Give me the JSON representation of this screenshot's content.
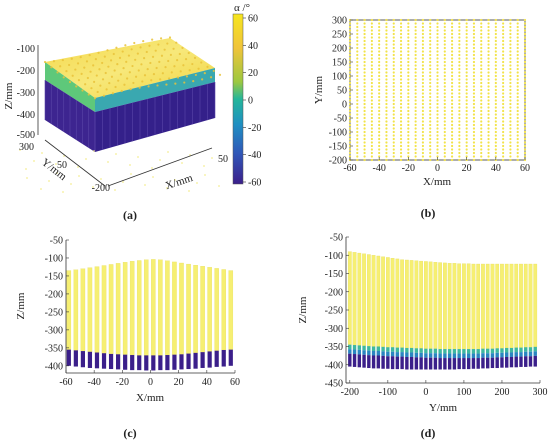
{
  "figure": {
    "panel_labels": [
      "(a)",
      "(b)",
      "(c)",
      "(d)"
    ]
  },
  "chart_data": [
    {
      "panel": "(a)",
      "type": "scatter3d",
      "zlabel": "Z/mm",
      "ylabel": "Y/mm",
      "xlabel": "X/mm",
      "z_ticks": [
        -100,
        -200,
        -300,
        -400,
        -500
      ],
      "y_ticks": [
        300,
        50,
        -200
      ],
      "x_ticks": [
        50
      ],
      "colorbar": {
        "label": "α /°",
        "ticks": [
          60,
          40,
          20,
          0,
          -20,
          -40,
          -60
        ],
        "range": [
          -60,
          60
        ],
        "colors": [
          "#3b1f8a",
          "#2d58b8",
          "#1f8fc2",
          "#1fb59a",
          "#7cc94a",
          "#e3c72f",
          "#f6e61e"
        ]
      },
      "top_surface_z": [
        -100,
        -200
      ],
      "interface_z": -350,
      "bottom_z": -420
    },
    {
      "panel": "(b)",
      "type": "scatter",
      "xlabel": "X/mm",
      "ylabel": "Y/mm",
      "xlim": [
        -60,
        60
      ],
      "ylim": [
        -200,
        300
      ],
      "x_ticks": [
        -60,
        -40,
        -20,
        0,
        20,
        40,
        60
      ],
      "y_ticks": [
        300,
        250,
        200,
        150,
        100,
        50,
        0,
        -50,
        -100,
        -150,
        -200
      ],
      "grid_spacing": {
        "x": 5,
        "y": 12.5
      },
      "point_color": "#f2e34a"
    },
    {
      "panel": "(c)",
      "type": "bar",
      "xlabel": "X/mm",
      "ylabel": "Z/mm",
      "xlim": [
        -60,
        60
      ],
      "ylim": [
        -420,
        -50
      ],
      "x_ticks": [
        -60,
        -40,
        -20,
        0,
        20,
        40,
        60
      ],
      "y_ticks": [
        -50,
        -100,
        -150,
        -200,
        -250,
        -300,
        -350,
        -400
      ],
      "x": [
        -58,
        -53,
        -48,
        -43,
        -38,
        -33,
        -28,
        -23,
        -18,
        -13,
        -8,
        -3,
        2,
        7,
        12,
        17,
        22,
        27,
        32,
        37,
        42,
        47,
        52,
        57
      ],
      "top": [
        -135,
        -133,
        -130,
        -127,
        -124,
        -121,
        -118,
        -115,
        -112,
        -109,
        -107,
        -105,
        -104,
        -105,
        -108,
        -111,
        -114,
        -117,
        -120,
        -123,
        -126,
        -129,
        -132,
        -135
      ],
      "interface": [
        -355,
        -357,
        -359,
        -361,
        -363,
        -365,
        -367,
        -368,
        -369,
        -370,
        -371,
        -371,
        -371,
        -371,
        -370,
        -369,
        -368,
        -366,
        -364,
        -362,
        -360,
        -358,
        -356,
        -355
      ],
      "bottom": [
        -400,
        -402,
        -404,
        -406,
        -407,
        -408,
        -409,
        -410,
        -411,
        -412,
        -412,
        -413,
        -413,
        -412,
        -412,
        -411,
        -410,
        -409,
        -408,
        -406,
        -405,
        -403,
        -402,
        -400
      ],
      "upper_color": "#f6ef72",
      "lower_color": "#3b1f8a"
    },
    {
      "panel": "(d)",
      "type": "bar",
      "xlabel": "Y/mm",
      "ylabel": "Z/mm",
      "xlim": [
        -210,
        300
      ],
      "ylim": [
        -450,
        -50
      ],
      "x_ticks": [
        -200,
        -100,
        0,
        100,
        200,
        300
      ],
      "y_ticks": [
        -50,
        -100,
        -150,
        -200,
        -250,
        -300,
        -350,
        -400,
        -450
      ],
      "x": [
        -200,
        -187.5,
        -175,
        -162.5,
        -150,
        -137.5,
        -125,
        -112.5,
        -100,
        -87.5,
        -75,
        -62.5,
        -50,
        -37.5,
        -25,
        -12.5,
        0,
        12.5,
        25,
        37.5,
        50,
        62.5,
        75,
        87.5,
        100,
        112.5,
        125,
        137.5,
        150,
        162.5,
        175,
        187.5,
        200,
        212.5,
        225,
        237.5,
        250,
        262.5,
        275,
        287.5
      ],
      "top": [
        -90,
        -92,
        -94,
        -96,
        -98,
        -100,
        -102,
        -104,
        -106,
        -108,
        -110,
        -112,
        -113,
        -114,
        -115,
        -116,
        -117,
        -118,
        -119,
        -120,
        -121,
        -122,
        -122,
        -123,
        -123,
        -123,
        -124,
        -124,
        -124,
        -124,
        -124,
        -124,
        -124,
        -124,
        -124,
        -124,
        -124,
        -124,
        -124,
        -124
      ],
      "interface": [
        -345,
        -346,
        -347,
        -348,
        -349,
        -350,
        -350,
        -351,
        -352,
        -352,
        -353,
        -353,
        -354,
        -354,
        -355,
        -355,
        -356,
        -356,
        -356,
        -357,
        -357,
        -357,
        -357,
        -357,
        -357,
        -357,
        -357,
        -357,
        -356,
        -356,
        -356,
        -355,
        -355,
        -354,
        -354,
        -353,
        -353,
        -352,
        -352,
        -351
      ],
      "bottom": [
        -405,
        -406,
        -407,
        -408,
        -409,
        -410,
        -410,
        -411,
        -411,
        -412,
        -412,
        -412,
        -413,
        -413,
        -413,
        -413,
        -413,
        -413,
        -413,
        -413,
        -413,
        -413,
        -413,
        -412,
        -412,
        -412,
        -411,
        -411,
        -410,
        -410,
        -409,
        -409,
        -408,
        -408,
        -407,
        -407,
        -406,
        -406,
        -405,
        -405
      ],
      "upper_color": "#f6ef72",
      "transition_colors": [
        "#3fb7a0",
        "#2a86c0"
      ],
      "lower_color": "#3b1f8a"
    }
  ]
}
